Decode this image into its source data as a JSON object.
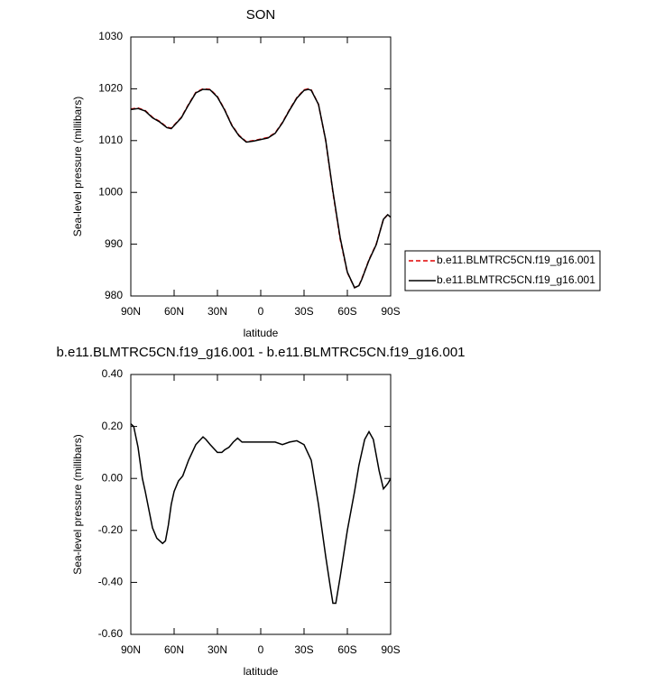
{
  "chart_data": [
    {
      "type": "line",
      "title": "SON",
      "xlabel": "latitude",
      "ylabel": "Sea-level pressure (millibars)",
      "x": [
        90,
        85,
        80,
        75,
        70,
        65,
        62,
        55,
        50,
        45,
        40,
        35,
        30,
        25,
        20,
        15,
        10,
        5,
        0,
        -5,
        -10,
        -15,
        -20,
        -25,
        -30,
        -33,
        -35,
        -40,
        -45,
        -50,
        -55,
        -60,
        -65,
        -68,
        -70,
        -75,
        -80,
        -85,
        -88,
        -90
      ],
      "series": [
        {
          "name": "b.e11.BLMTRC5CN.f19_g16.001",
          "color": "#e00000",
          "dash": "dashed",
          "values": [
            1016.1,
            1016.3,
            1015.8,
            1014.5,
            1013.7,
            1012.6,
            1012.4,
            1014.5,
            1017,
            1019.3,
            1020,
            1019.9,
            1018.5,
            1016,
            1013,
            1011,
            1009.8,
            1010,
            1010.3,
            1010.6,
            1011.5,
            1013.5,
            1016,
            1018.3,
            1019.8,
            1020,
            1019.8,
            1017,
            1010,
            1000,
            991,
            984.5,
            981.6,
            982,
            983.3,
            987,
            990,
            994.8,
            995.7,
            995.2
          ]
        },
        {
          "name": "b.e11.BLMTRC5CN.f19_g16.001",
          "color": "#000000",
          "dash": "solid",
          "values": [
            1016.0,
            1016.2,
            1015.7,
            1014.4,
            1013.6,
            1012.5,
            1012.3,
            1014.4,
            1016.9,
            1019.2,
            1019.9,
            1019.8,
            1018.4,
            1015.9,
            1012.9,
            1010.9,
            1009.7,
            1009.9,
            1010.2,
            1010.5,
            1011.4,
            1013.4,
            1015.9,
            1018.2,
            1019.7,
            1019.9,
            1019.7,
            1017,
            1010.1,
            1000.2,
            991.3,
            984.6,
            981.6,
            982,
            983.2,
            986.9,
            989.9,
            994.8,
            995.7,
            995.2
          ]
        }
      ],
      "xlim": [
        90,
        -90
      ],
      "ylim": [
        980,
        1030
      ],
      "xticks": [
        {
          "value": 90,
          "label": "90N"
        },
        {
          "value": 60,
          "label": "60N"
        },
        {
          "value": 30,
          "label": "30N"
        },
        0,
        {
          "value": -30,
          "label": "30S"
        },
        {
          "value": -60,
          "label": "60S"
        },
        {
          "value": -90,
          "label": "90S"
        }
      ],
      "yticks": [
        980,
        990,
        1000,
        1010,
        1020,
        1030
      ],
      "legend": "right"
    },
    {
      "type": "line",
      "title": "b.e11.BLMTRC5CN.f19_g16.001 - b.e11.BLMTRC5CN.f19_g16.001",
      "xlabel": "latitude",
      "ylabel": "Sea-level pressure (millibars)",
      "x": [
        90,
        88,
        85,
        82,
        80,
        75,
        72,
        68,
        66,
        64,
        62,
        60,
        57,
        54,
        50,
        45,
        40,
        38,
        35,
        30,
        27,
        25,
        22,
        19,
        16,
        13,
        10,
        5,
        0,
        -5,
        -10,
        -15,
        -20,
        -25,
        -30,
        -35,
        -40,
        -45,
        -48,
        -50,
        -52,
        -55,
        -60,
        -65,
        -68,
        -72,
        -75,
        -78,
        -82,
        -85,
        -88,
        -90
      ],
      "series": [
        {
          "color": "#000000",
          "dash": "solid",
          "values": [
            0.21,
            0.2,
            0.12,
            0.0,
            -0.05,
            -0.19,
            -0.23,
            -0.25,
            -0.24,
            -0.18,
            -0.1,
            -0.05,
            -0.01,
            0.01,
            0.07,
            0.13,
            0.16,
            0.15,
            0.13,
            0.1,
            0.1,
            0.11,
            0.12,
            0.14,
            0.155,
            0.14,
            0.14,
            0.14,
            0.14,
            0.14,
            0.14,
            0.13,
            0.14,
            0.145,
            0.13,
            0.07,
            -0.1,
            -0.3,
            -0.41,
            -0.48,
            -0.48,
            -0.38,
            -0.2,
            -0.05,
            0.05,
            0.15,
            0.18,
            0.15,
            0.03,
            -0.04,
            -0.02,
            0.0
          ]
        }
      ],
      "xlim": [
        90,
        -90
      ],
      "ylim": [
        -0.6,
        0.4
      ],
      "xticks": [
        {
          "value": 90,
          "label": "90N"
        },
        {
          "value": 60,
          "label": "60N"
        },
        {
          "value": 30,
          "label": "30N"
        },
        0,
        {
          "value": -30,
          "label": "30S"
        },
        {
          "value": -60,
          "label": "60S"
        },
        {
          "value": -90,
          "label": "90S"
        }
      ],
      "yticks": [
        {
          "value": -0.6,
          "label": "-0.60"
        },
        {
          "value": -0.4,
          "label": "-0.40"
        },
        {
          "value": -0.2,
          "label": "-0.20"
        },
        {
          "value": 0,
          "label": "0.00"
        },
        {
          "value": 0.2,
          "label": "0.20"
        },
        {
          "value": 0.4,
          "label": "0.40"
        }
      ]
    }
  ]
}
